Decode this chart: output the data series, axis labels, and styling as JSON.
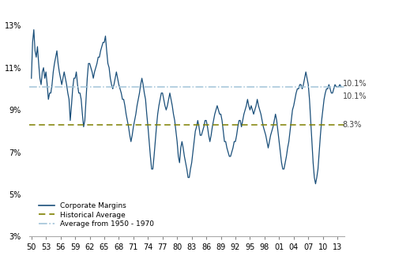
{
  "hist_avg": 8.3,
  "early_avg": 10.1,
  "hist_avg_label": "8.3%",
  "early_avg_label": "10.1%",
  "current_label": "10.1%",
  "line_color": "#1a4f7a",
  "hist_avg_color": "#7f8000",
  "early_avg_color": "#a2c4d8",
  "legend_labels": [
    "Corporate Margins",
    "Historical Average",
    "Average from 1950 - 1970"
  ],
  "y_ticks": [
    3,
    5,
    7,
    9,
    11,
    13
  ],
  "y_tick_labels": [
    "3%",
    "5%",
    "7%",
    "9%",
    "11%",
    "13%"
  ],
  "x_tick_vals": [
    1950,
    1953,
    1956,
    1959,
    1962,
    1965,
    1968,
    1971,
    1974,
    1977,
    1980,
    1983,
    1986,
    1989,
    1992,
    1995,
    1998,
    2001,
    2004,
    2007,
    2010,
    2013
  ],
  "x_tick_labels": [
    "50",
    "53",
    "56",
    "59",
    "62",
    "65",
    "68",
    "71",
    "74",
    "77",
    "80",
    "83",
    "86",
    "89",
    "92",
    "95",
    "98",
    "01",
    "04",
    "07",
    "10",
    "13"
  ],
  "ylim": [
    3,
    14
  ],
  "quarters": [
    1950.0,
    1950.25,
    1950.5,
    1950.75,
    1951.0,
    1951.25,
    1951.5,
    1951.75,
    1952.0,
    1952.25,
    1952.5,
    1952.75,
    1953.0,
    1953.25,
    1953.5,
    1953.75,
    1954.0,
    1954.25,
    1954.5,
    1954.75,
    1955.0,
    1955.25,
    1955.5,
    1955.75,
    1956.0,
    1956.25,
    1956.5,
    1956.75,
    1957.0,
    1957.25,
    1957.5,
    1957.75,
    1958.0,
    1958.25,
    1958.5,
    1958.75,
    1959.0,
    1959.25,
    1959.5,
    1959.75,
    1960.0,
    1960.25,
    1960.5,
    1960.75,
    1961.0,
    1961.25,
    1961.5,
    1961.75,
    1962.0,
    1962.25,
    1962.5,
    1962.75,
    1963.0,
    1963.25,
    1963.5,
    1963.75,
    1964.0,
    1964.25,
    1964.5,
    1964.75,
    1965.0,
    1965.25,
    1965.5,
    1965.75,
    1966.0,
    1966.25,
    1966.5,
    1966.75,
    1967.0,
    1967.25,
    1967.5,
    1967.75,
    1968.0,
    1968.25,
    1968.5,
    1968.75,
    1969.0,
    1969.25,
    1969.5,
    1969.75,
    1970.0,
    1970.25,
    1970.5,
    1970.75,
    1971.0,
    1971.25,
    1971.5,
    1971.75,
    1972.0,
    1972.25,
    1972.5,
    1972.75,
    1973.0,
    1973.25,
    1973.5,
    1973.75,
    1974.0,
    1974.25,
    1974.5,
    1974.75,
    1975.0,
    1975.25,
    1975.5,
    1975.75,
    1976.0,
    1976.25,
    1976.5,
    1976.75,
    1977.0,
    1977.25,
    1977.5,
    1977.75,
    1978.0,
    1978.25,
    1978.5,
    1978.75,
    1979.0,
    1979.25,
    1979.5,
    1979.75,
    1980.0,
    1980.25,
    1980.5,
    1980.75,
    1981.0,
    1981.25,
    1981.5,
    1981.75,
    1982.0,
    1982.25,
    1982.5,
    1982.75,
    1983.0,
    1983.25,
    1983.5,
    1983.75,
    1984.0,
    1984.25,
    1984.5,
    1984.75,
    1985.0,
    1985.25,
    1985.5,
    1985.75,
    1986.0,
    1986.25,
    1986.5,
    1986.75,
    1987.0,
    1987.25,
    1987.5,
    1987.75,
    1988.0,
    1988.25,
    1988.5,
    1988.75,
    1989.0,
    1989.25,
    1989.5,
    1989.75,
    1990.0,
    1990.25,
    1990.5,
    1990.75,
    1991.0,
    1991.25,
    1991.5,
    1991.75,
    1992.0,
    1992.25,
    1992.5,
    1992.75,
    1993.0,
    1993.25,
    1993.5,
    1993.75,
    1994.0,
    1994.25,
    1994.5,
    1994.75,
    1995.0,
    1995.25,
    1995.5,
    1995.75,
    1996.0,
    1996.25,
    1996.5,
    1996.75,
    1997.0,
    1997.25,
    1997.5,
    1997.75,
    1998.0,
    1998.25,
    1998.5,
    1998.75,
    1999.0,
    1999.25,
    1999.5,
    1999.75,
    2000.0,
    2000.25,
    2000.5,
    2000.75,
    2001.0,
    2001.25,
    2001.5,
    2001.75,
    2002.0,
    2002.25,
    2002.5,
    2002.75,
    2003.0,
    2003.25,
    2003.5,
    2003.75,
    2004.0,
    2004.25,
    2004.5,
    2004.75,
    2005.0,
    2005.25,
    2005.5,
    2005.75,
    2006.0,
    2006.25,
    2006.5,
    2006.75,
    2007.0,
    2007.25,
    2007.5,
    2007.75,
    2008.0,
    2008.25,
    2008.5,
    2008.75,
    2009.0,
    2009.25,
    2009.5,
    2009.75,
    2010.0,
    2010.25,
    2010.5,
    2010.75,
    2011.0,
    2011.25,
    2011.5,
    2011.75,
    2012.0,
    2012.25,
    2012.5,
    2012.75,
    2013.0,
    2013.25,
    2013.5,
    2013.75
  ],
  "margins": [
    10.5,
    12.2,
    12.8,
    11.8,
    11.5,
    12.0,
    11.2,
    10.5,
    10.2,
    10.8,
    11.0,
    10.5,
    10.8,
    10.2,
    9.5,
    9.8,
    9.8,
    10.2,
    10.8,
    11.2,
    11.5,
    11.8,
    11.2,
    10.8,
    10.5,
    10.2,
    10.5,
    10.8,
    10.5,
    10.2,
    9.8,
    9.5,
    8.5,
    9.2,
    10.0,
    10.5,
    10.5,
    10.8,
    10.2,
    9.8,
    9.8,
    9.5,
    8.8,
    8.2,
    8.5,
    9.5,
    10.5,
    11.2,
    11.2,
    11.0,
    10.8,
    10.5,
    10.8,
    11.0,
    11.2,
    11.5,
    11.5,
    11.8,
    12.0,
    12.2,
    12.2,
    12.5,
    11.8,
    11.2,
    11.0,
    10.5,
    10.2,
    10.0,
    10.2,
    10.5,
    10.8,
    10.5,
    10.2,
    10.0,
    9.8,
    9.5,
    9.5,
    9.2,
    8.8,
    8.5,
    8.2,
    7.8,
    7.5,
    7.8,
    8.2,
    8.5,
    8.8,
    9.2,
    9.5,
    9.8,
    10.2,
    10.5,
    10.2,
    9.8,
    9.5,
    8.8,
    8.2,
    7.5,
    6.8,
    6.2,
    6.2,
    6.8,
    7.5,
    8.2,
    8.8,
    9.2,
    9.5,
    9.8,
    9.8,
    9.5,
    9.2,
    9.0,
    9.2,
    9.5,
    9.8,
    9.5,
    9.2,
    8.8,
    8.5,
    8.0,
    7.5,
    6.8,
    6.5,
    7.2,
    7.5,
    7.2,
    6.8,
    6.5,
    6.2,
    5.8,
    5.8,
    6.2,
    6.5,
    7.0,
    7.5,
    8.0,
    8.2,
    8.5,
    8.2,
    7.8,
    7.8,
    8.0,
    8.2,
    8.5,
    8.5,
    8.2,
    7.8,
    7.5,
    7.8,
    8.2,
    8.5,
    8.8,
    9.0,
    9.2,
    9.0,
    8.8,
    8.8,
    8.5,
    8.0,
    7.5,
    7.5,
    7.2,
    7.0,
    6.8,
    6.8,
    7.0,
    7.2,
    7.5,
    7.5,
    7.8,
    8.2,
    8.5,
    8.5,
    8.2,
    8.5,
    8.8,
    9.0,
    9.2,
    9.5,
    9.2,
    9.0,
    9.2,
    9.0,
    8.8,
    9.0,
    9.2,
    9.5,
    9.2,
    9.0,
    8.8,
    8.5,
    8.2,
    8.0,
    7.8,
    7.5,
    7.2,
    7.5,
    7.8,
    8.0,
    8.2,
    8.5,
    8.8,
    8.5,
    8.0,
    7.5,
    7.0,
    6.5,
    6.2,
    6.2,
    6.5,
    6.8,
    7.2,
    7.5,
    8.0,
    8.5,
    9.0,
    9.2,
    9.5,
    9.8,
    10.0,
    10.0,
    10.2,
    10.2,
    10.0,
    10.2,
    10.5,
    10.8,
    10.5,
    10.2,
    9.5,
    8.5,
    7.5,
    6.5,
    5.8,
    5.5,
    5.8,
    6.2,
    7.0,
    7.8,
    8.5,
    9.0,
    9.5,
    9.8,
    10.0,
    10.0,
    10.2,
    10.0,
    9.8,
    9.8,
    10.0,
    10.2,
    10.1,
    10.1,
    10.1,
    10.2,
    10.1
  ]
}
